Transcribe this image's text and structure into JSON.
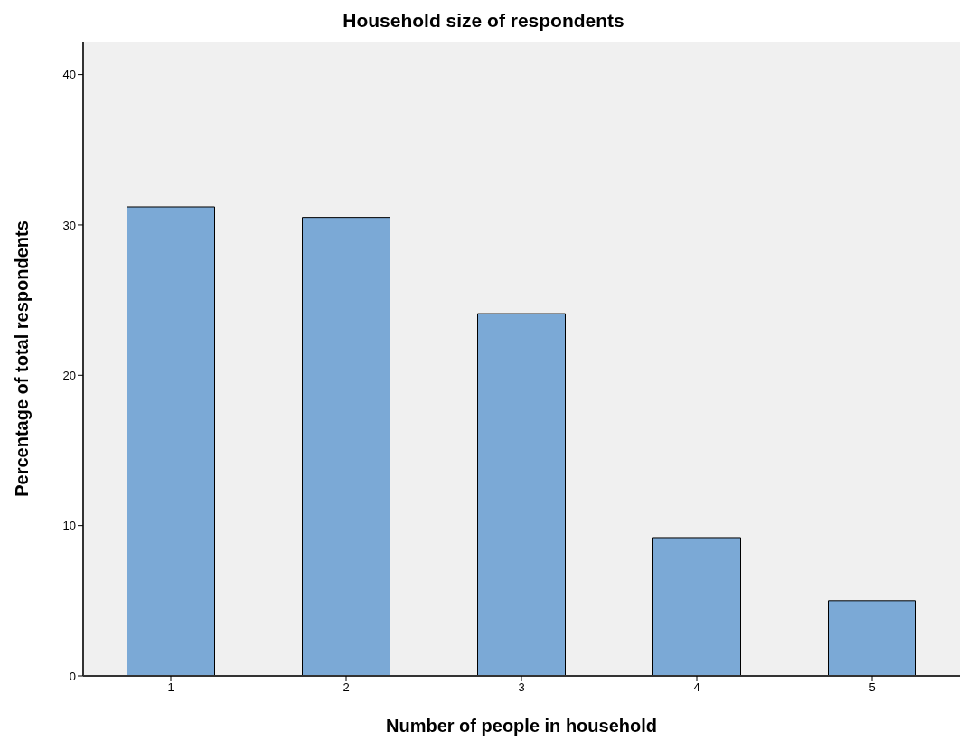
{
  "chart_data": {
    "type": "bar",
    "title": "Household size of respondents",
    "xlabel": "Number of people in household",
    "ylabel": "Percentage of total respondents",
    "categories": [
      "1",
      "2",
      "3",
      "4",
      "5"
    ],
    "values": [
      31.2,
      30.5,
      24.1,
      9.2,
      5.0
    ],
    "color": "#7ba9d6",
    "ylim": [
      0,
      42.2
    ],
    "yticks": [
      0,
      10,
      20,
      30,
      40
    ]
  }
}
